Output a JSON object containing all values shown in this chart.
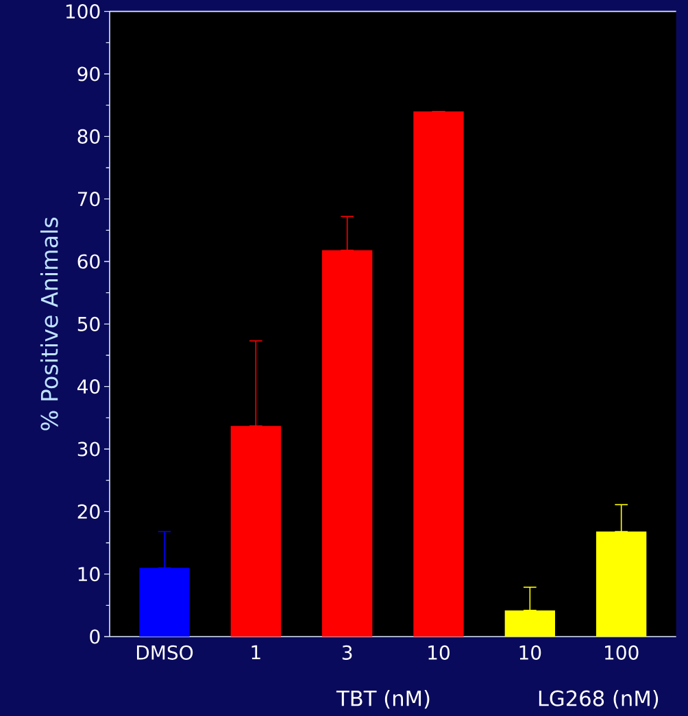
{
  "chart_data": {
    "type": "bar",
    "ylabel": "% Positive Animals",
    "categories": [
      "DMSO",
      "1",
      "3",
      "10",
      "10",
      "100"
    ],
    "values": [
      11,
      33.7,
      61.8,
      84,
      4.2,
      16.8
    ],
    "colors": [
      "#0000ff",
      "#ff0000",
      "#ff0000",
      "#ff0000",
      "#ffff00",
      "#ffff00"
    ],
    "errors": [
      [
        11,
        16.8
      ],
      [
        33.7,
        47.3
      ],
      [
        61.8,
        67.2
      ],
      [
        84,
        84
      ],
      [
        4.2,
        7.9
      ],
      [
        16.8,
        21.1
      ]
    ],
    "ylim": [
      0,
      100
    ],
    "yticks": [
      0,
      10,
      20,
      30,
      40,
      50,
      60,
      70,
      80,
      90,
      100
    ],
    "annotations": [
      "TBT (nM)",
      "LG268 (nM)"
    ]
  }
}
